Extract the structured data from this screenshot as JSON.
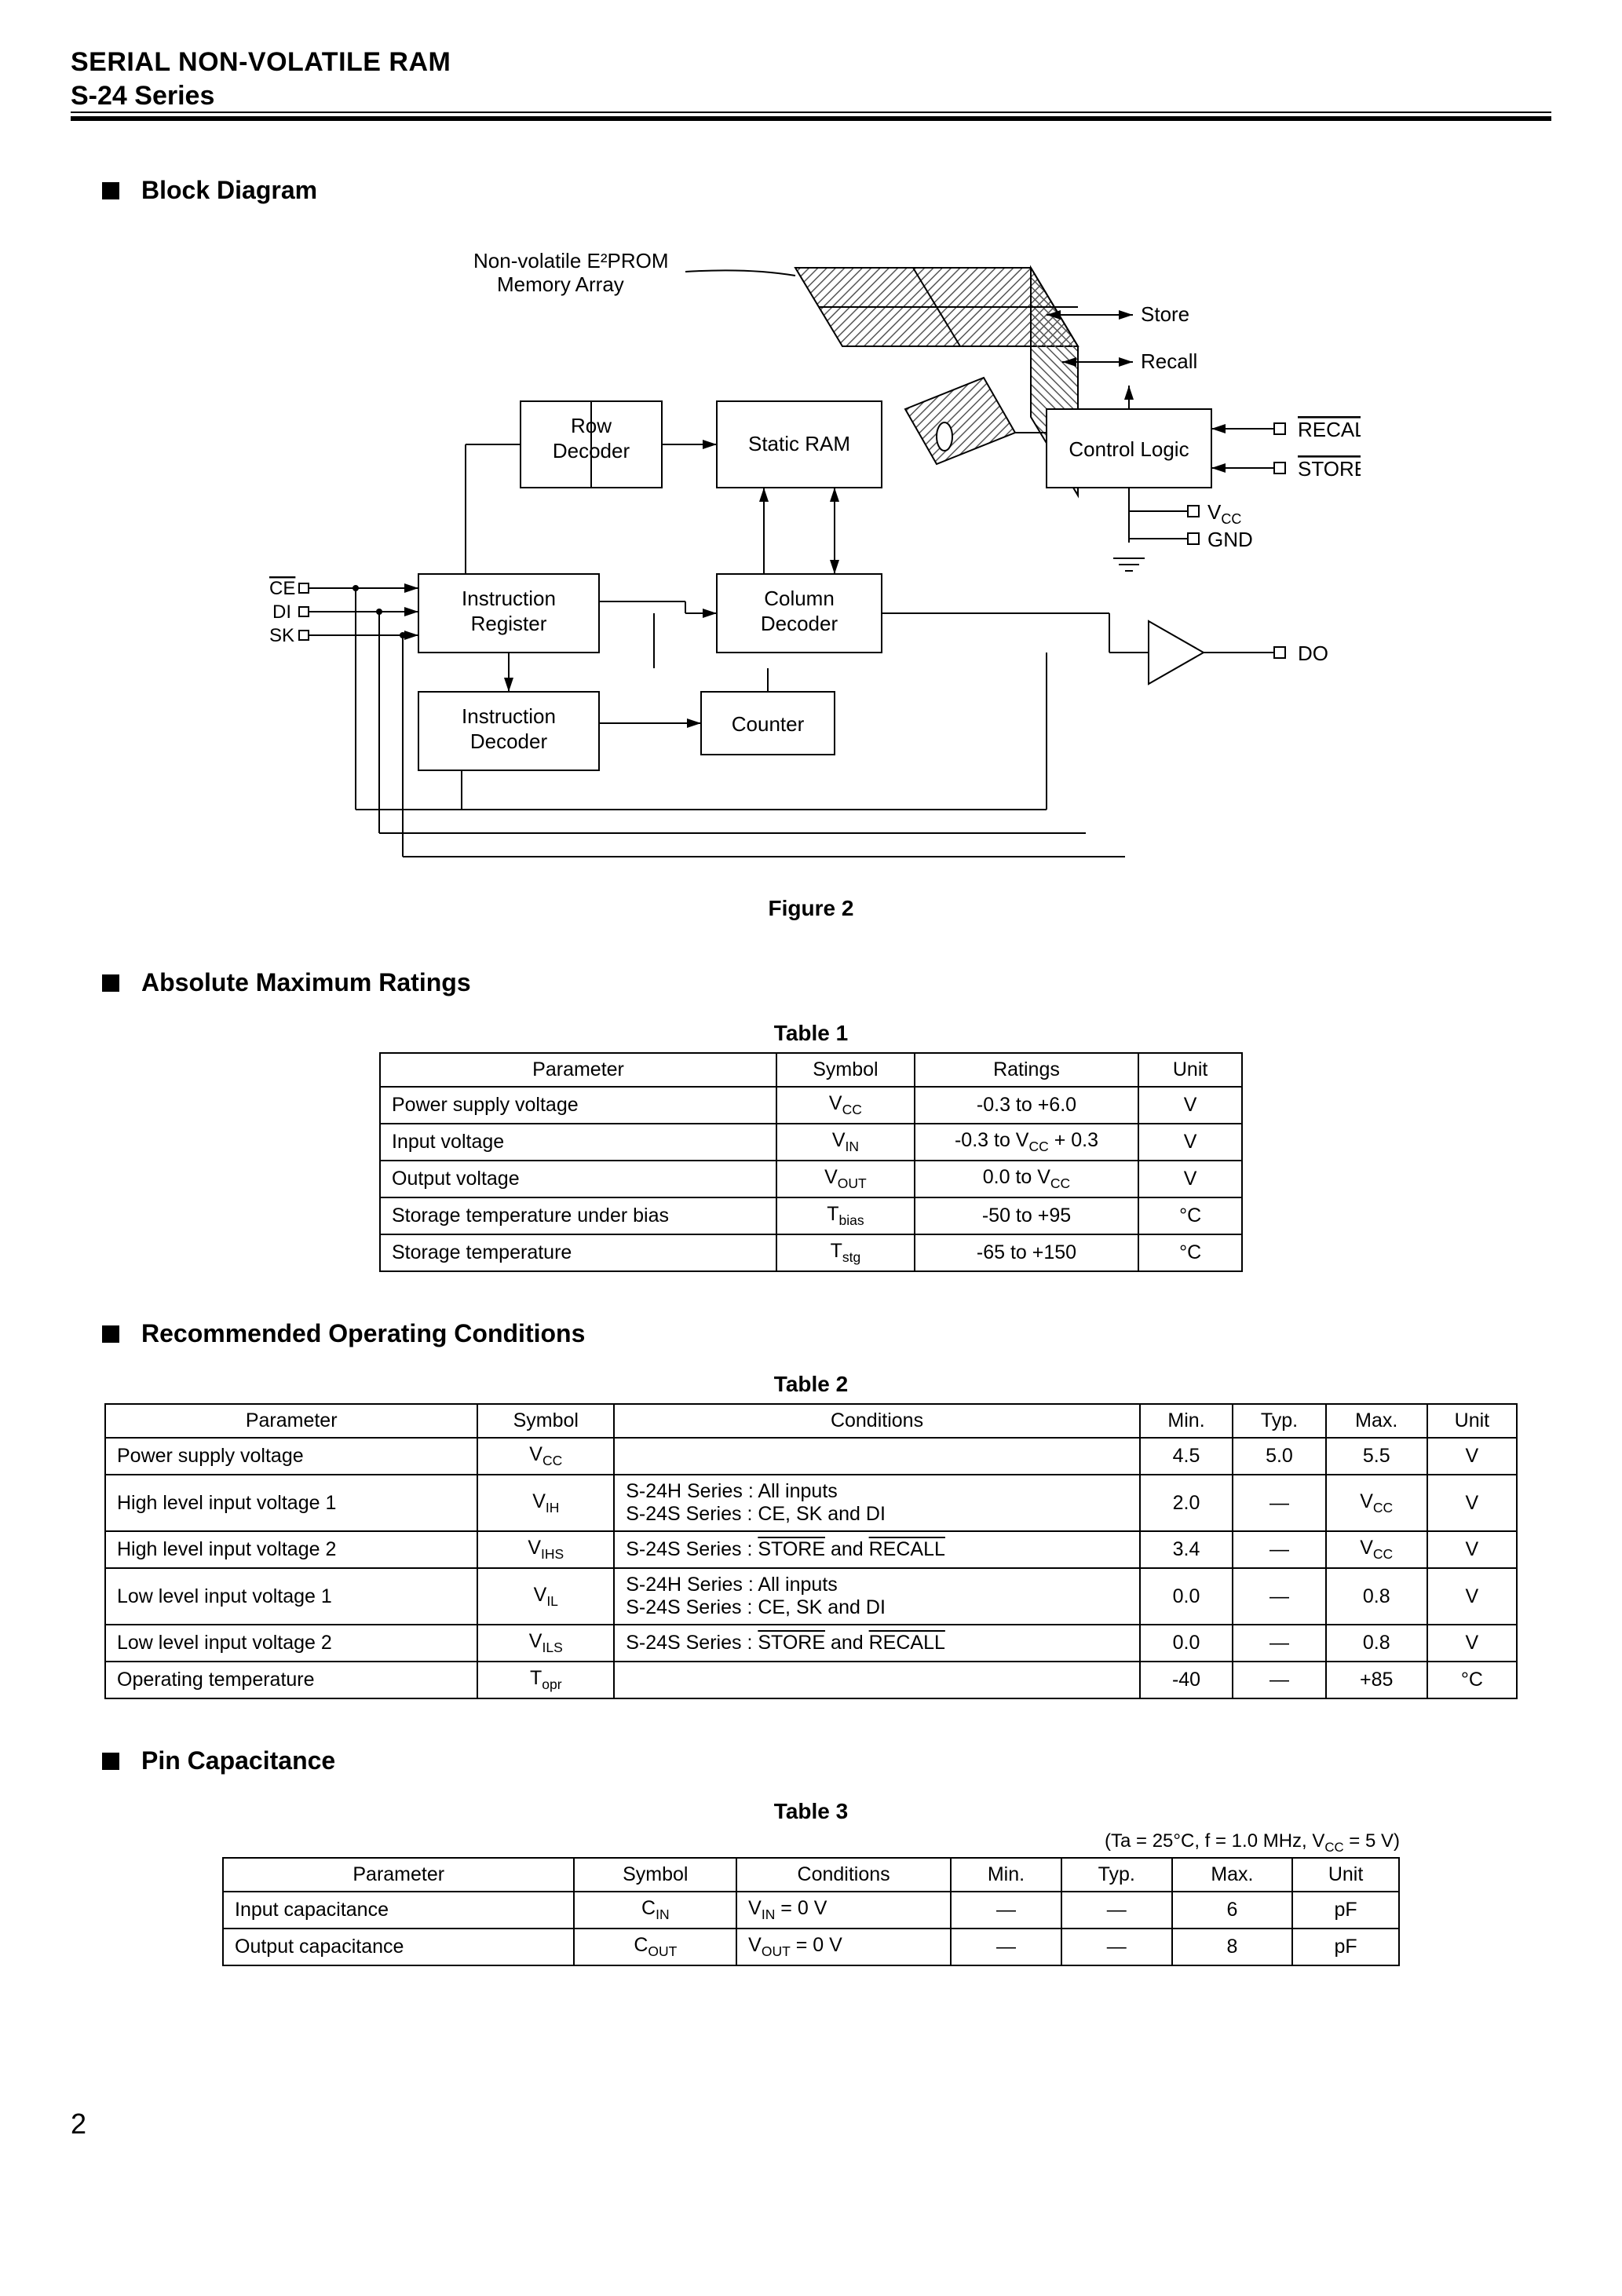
{
  "header": {
    "line1": "SERIAL NON-VOLATILE RAM",
    "line2": "S-24 Series"
  },
  "sections": {
    "block_diagram": "Block Diagram",
    "abs_max": "Absolute Maximum Ratings",
    "rec_op": "Recommended Operating Conditions",
    "pin_cap": "Pin Capacitance"
  },
  "figure2_caption": "Figure 2",
  "diagram": {
    "type": "block-diagram",
    "line_color": "#000000",
    "hatch_color": "#7a7a7a",
    "font_family": "Arial",
    "blocks": {
      "e2prom_label1": "Non-volatile E²PROM",
      "e2prom_label2": "Memory Array",
      "row_decoder1": "Row",
      "row_decoder2": "Decoder",
      "static_ram": "Static RAM",
      "control_logic": "Control Logic",
      "instr_reg1": "Instruction",
      "instr_reg2": "Register",
      "col_dec1": "Column",
      "col_dec2": "Decoder",
      "instr_dec1": "Instruction",
      "instr_dec2": "Decoder",
      "counter": "Counter"
    },
    "arrows": {
      "store": "Store",
      "recall": "Recall"
    },
    "pins": {
      "ce": "CE",
      "di": "DI",
      "sk": "SK",
      "recall": "RECALL",
      "store": "STORE",
      "vcc": "V",
      "vcc_sub": "CC",
      "gnd": "GND",
      "do": "DO"
    }
  },
  "table1": {
    "caption": "Table 1",
    "columns": [
      "Parameter",
      "Symbol",
      "Ratings",
      "Unit"
    ],
    "rows": [
      {
        "param": "Power supply voltage",
        "sym": "V",
        "sym_sub": "CC",
        "ratings": "-0.3 to +6.0",
        "unit": "V"
      },
      {
        "param": "Input voltage",
        "sym": "V",
        "sym_sub": "IN",
        "ratings_html": "-0.3 to V<sub>CC</sub> + 0.3",
        "unit": "V"
      },
      {
        "param": "Output voltage",
        "sym": "V",
        "sym_sub": "OUT",
        "ratings_html": "0.0 to V<sub>CC</sub>",
        "unit": "V"
      },
      {
        "param": "Storage temperature under bias",
        "sym": "T",
        "sym_sub": "bias",
        "ratings": "-50 to +95",
        "unit": "°C"
      },
      {
        "param": "Storage temperature",
        "sym": "T",
        "sym_sub": "stg",
        "ratings": "-65 to +150",
        "unit": "°C"
      }
    ]
  },
  "table2": {
    "caption": "Table 2",
    "columns": [
      "Parameter",
      "Symbol",
      "Conditions",
      "Min.",
      "Typ.",
      "Max.",
      "Unit"
    ],
    "rows": [
      {
        "param": "Power supply voltage",
        "sym": "V",
        "sym_sub": "CC",
        "cond": "",
        "min": "4.5",
        "typ": "5.0",
        "max": "5.5",
        "unit": "V"
      },
      {
        "param": "High level input voltage 1",
        "sym": "V",
        "sym_sub": "IH",
        "cond": "S-24H Series : All inputs\nS-24S Series : CE, SK and DI",
        "min": "2.0",
        "typ": "—",
        "max_html": "V<sub>CC</sub>",
        "unit": "V"
      },
      {
        "param": "High level input voltage 2",
        "sym": "V",
        "sym_sub": "IHS",
        "cond_html": "S-24S Series : <span class=\"overline\">STORE</span> and <span class=\"overline\">RECALL</span>",
        "min": "3.4",
        "typ": "—",
        "max_html": "V<sub>CC</sub>",
        "unit": "V"
      },
      {
        "param": "Low level input voltage 1",
        "sym": "V",
        "sym_sub": "IL",
        "cond": "S-24H Series : All inputs\nS-24S Series : CE, SK and DI",
        "min": "0.0",
        "typ": "—",
        "max": "0.8",
        "unit": "V"
      },
      {
        "param": "Low level input voltage 2",
        "sym": "V",
        "sym_sub": "ILS",
        "cond_html": "S-24S Series : <span class=\"overline\">STORE</span> and <span class=\"overline\">RECALL</span>",
        "min": "0.0",
        "typ": "—",
        "max": "0.8",
        "unit": "V"
      },
      {
        "param": "Operating temperature",
        "sym": "T",
        "sym_sub": "opr",
        "cond": "",
        "min": "-40",
        "typ": "—",
        "max": "+85",
        "unit": "°C"
      }
    ]
  },
  "table3": {
    "caption": "Table 3",
    "cond_line_html": "(Ta = 25°C, f = 1.0 MHz, V<sub>CC</sub> = 5 V)",
    "columns": [
      "Parameter",
      "Symbol",
      "Conditions",
      "Min.",
      "Typ.",
      "Max.",
      "Unit"
    ],
    "rows": [
      {
        "param": "Input capacitance",
        "sym": "C",
        "sym_sub": "IN",
        "cond_html": "V<sub>IN</sub> = 0 V",
        "min": "—",
        "typ": "—",
        "max": "6",
        "unit": "pF"
      },
      {
        "param": "Output capacitance",
        "sym": "C",
        "sym_sub": "OUT",
        "cond_html": "V<sub>OUT</sub> = 0 V",
        "min": "—",
        "typ": "—",
        "max": "8",
        "unit": "pF"
      }
    ]
  },
  "page_number": "2"
}
